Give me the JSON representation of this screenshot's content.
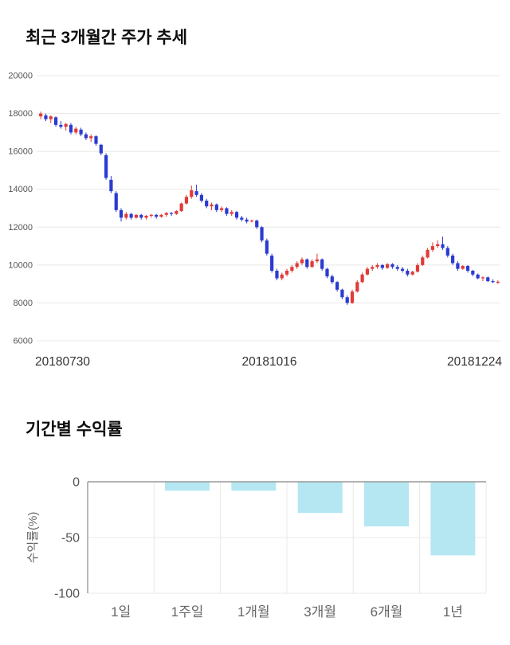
{
  "sections": {
    "price_trend": {
      "title": "최근 3개월간 주가 추세"
    },
    "returns": {
      "title": "기간별 수익률"
    }
  },
  "colors": {
    "candle_up": "#e03b38",
    "candle_down": "#2b3bd0",
    "bar_fill": "#b4e7f2",
    "grid": "#e8e8e8",
    "axis": "#999999",
    "tick_text": "#555555",
    "xlabel_text": "#333333",
    "label_text": "#666666",
    "title_text": "#0d0d0d"
  },
  "chart_data": [
    {
      "type": "candlestick",
      "title": "최근 3개월간 주가 추세",
      "ylim": [
        6000,
        20000
      ],
      "yticks": [
        6000,
        8000,
        10000,
        12000,
        14000,
        16000,
        18000,
        20000
      ],
      "xtick_labels": [
        "20180730",
        "20181016",
        "20181224"
      ],
      "grid": true,
      "legend": "none",
      "candles_ohlc": [
        [
          17850,
          18100,
          17700,
          18000
        ],
        [
          17900,
          18000,
          17600,
          17700
        ],
        [
          17700,
          17900,
          17500,
          17850
        ],
        [
          17800,
          17850,
          17300,
          17400
        ],
        [
          17400,
          17600,
          17200,
          17300
        ],
        [
          17300,
          17500,
          17100,
          17450
        ],
        [
          17400,
          17500,
          16900,
          17000
        ],
        [
          17000,
          17300,
          16900,
          17200
        ],
        [
          17150,
          17250,
          16800,
          16900
        ],
        [
          16900,
          17000,
          16600,
          16700
        ],
        [
          16700,
          16900,
          16500,
          16800
        ],
        [
          16800,
          16850,
          16300,
          16400
        ],
        [
          16350,
          16400,
          15800,
          15900
        ],
        [
          15800,
          15900,
          14500,
          14600
        ],
        [
          14500,
          14700,
          13800,
          13900
        ],
        [
          13800,
          13900,
          12800,
          12900
        ],
        [
          12900,
          13000,
          12300,
          12500
        ],
        [
          12500,
          12800,
          12400,
          12700
        ],
        [
          12700,
          12750,
          12400,
          12500
        ],
        [
          12500,
          12700,
          12450,
          12650
        ],
        [
          12650,
          12700,
          12400,
          12500
        ],
        [
          12500,
          12650,
          12400,
          12600
        ],
        [
          12600,
          12700,
          12500,
          12650
        ],
        [
          12650,
          12700,
          12450,
          12550
        ],
        [
          12550,
          12700,
          12500,
          12650
        ],
        [
          12650,
          12800,
          12550,
          12750
        ],
        [
          12750,
          12800,
          12600,
          12700
        ],
        [
          12700,
          12900,
          12650,
          12850
        ],
        [
          12850,
          13300,
          12800,
          13250
        ],
        [
          13250,
          13700,
          13200,
          13600
        ],
        [
          13600,
          14200,
          13500,
          13950
        ],
        [
          13900,
          14250,
          13600,
          13700
        ],
        [
          13700,
          13800,
          13300,
          13400
        ],
        [
          13400,
          13500,
          13000,
          13100
        ],
        [
          13100,
          13300,
          12900,
          13200
        ],
        [
          13200,
          13250,
          12800,
          12900
        ],
        [
          12900,
          13100,
          12800,
          13000
        ],
        [
          13000,
          13050,
          12600,
          12700
        ],
        [
          12700,
          12900,
          12600,
          12800
        ],
        [
          12800,
          12850,
          12400,
          12500
        ],
        [
          12500,
          12600,
          12300,
          12400
        ],
        [
          12400,
          12500,
          12200,
          12300
        ],
        [
          12300,
          12400,
          12250,
          12350
        ],
        [
          12350,
          12400,
          11900,
          12000
        ],
        [
          12000,
          12050,
          11200,
          11300
        ],
        [
          11300,
          11400,
          10500,
          10600
        ],
        [
          10500,
          10600,
          9600,
          9700
        ],
        [
          9700,
          9800,
          9200,
          9300
        ],
        [
          9300,
          9600,
          9200,
          9500
        ],
        [
          9500,
          9800,
          9400,
          9700
        ],
        [
          9700,
          10000,
          9600,
          9900
        ],
        [
          9900,
          10200,
          9800,
          10100
        ],
        [
          10100,
          10400,
          10000,
          10300
        ],
        [
          10300,
          10350,
          9800,
          9900
        ],
        [
          9900,
          10300,
          9850,
          10200
        ],
        [
          10200,
          10600,
          10100,
          10300
        ],
        [
          10300,
          10350,
          9700,
          9800
        ],
        [
          9800,
          9850,
          9300,
          9400
        ],
        [
          9400,
          9500,
          9000,
          9100
        ],
        [
          9100,
          9150,
          8600,
          8700
        ],
        [
          8700,
          8750,
          8200,
          8300
        ],
        [
          8300,
          8400,
          7900,
          8000
        ],
        [
          8000,
          8700,
          7950,
          8600
        ],
        [
          8600,
          9200,
          8550,
          9100
        ],
        [
          9100,
          9600,
          9050,
          9500
        ],
        [
          9500,
          9900,
          9450,
          9800
        ],
        [
          9800,
          10000,
          9700,
          9900
        ],
        [
          9900,
          10100,
          9800,
          10000
        ],
        [
          10000,
          10050,
          9750,
          9850
        ],
        [
          9850,
          10100,
          9800,
          10050
        ],
        [
          10050,
          10100,
          9800,
          9900
        ],
        [
          9900,
          10000,
          9700,
          9800
        ],
        [
          9800,
          9900,
          9600,
          9700
        ],
        [
          9700,
          9800,
          9400,
          9500
        ],
        [
          9500,
          9700,
          9450,
          9650
        ],
        [
          9650,
          10100,
          9600,
          10000
        ],
        [
          10000,
          10500,
          9950,
          10400
        ],
        [
          10400,
          10900,
          10350,
          10800
        ],
        [
          10800,
          11200,
          10700,
          11000
        ],
        [
          11000,
          11300,
          10900,
          11100
        ],
        [
          11100,
          11500,
          10800,
          10900
        ],
        [
          10900,
          11000,
          10400,
          10500
        ],
        [
          10500,
          10600,
          10000,
          10100
        ],
        [
          10100,
          10200,
          9700,
          9800
        ],
        [
          9800,
          10000,
          9750,
          9950
        ],
        [
          9950,
          10000,
          9600,
          9700
        ],
        [
          9700,
          9750,
          9400,
          9500
        ],
        [
          9500,
          9550,
          9250,
          9300
        ],
        [
          9300,
          9400,
          9150,
          9350
        ],
        [
          9350,
          9400,
          9100,
          9150
        ],
        [
          9150,
          9250,
          9050,
          9100
        ],
        [
          9100,
          9200,
          9000,
          9120
        ]
      ]
    },
    {
      "type": "bar",
      "title": "기간별 수익률",
      "ylabel": "수익률(%)",
      "categories": [
        "1일",
        "1주일",
        "1개월",
        "3개월",
        "6개월",
        "1년"
      ],
      "values": [
        0,
        -8,
        -8,
        -28,
        -40,
        -66
      ],
      "ylim": [
        -100,
        0
      ],
      "yticks": [
        0,
        -50,
        -100
      ],
      "grid": true,
      "legend": "none"
    }
  ]
}
